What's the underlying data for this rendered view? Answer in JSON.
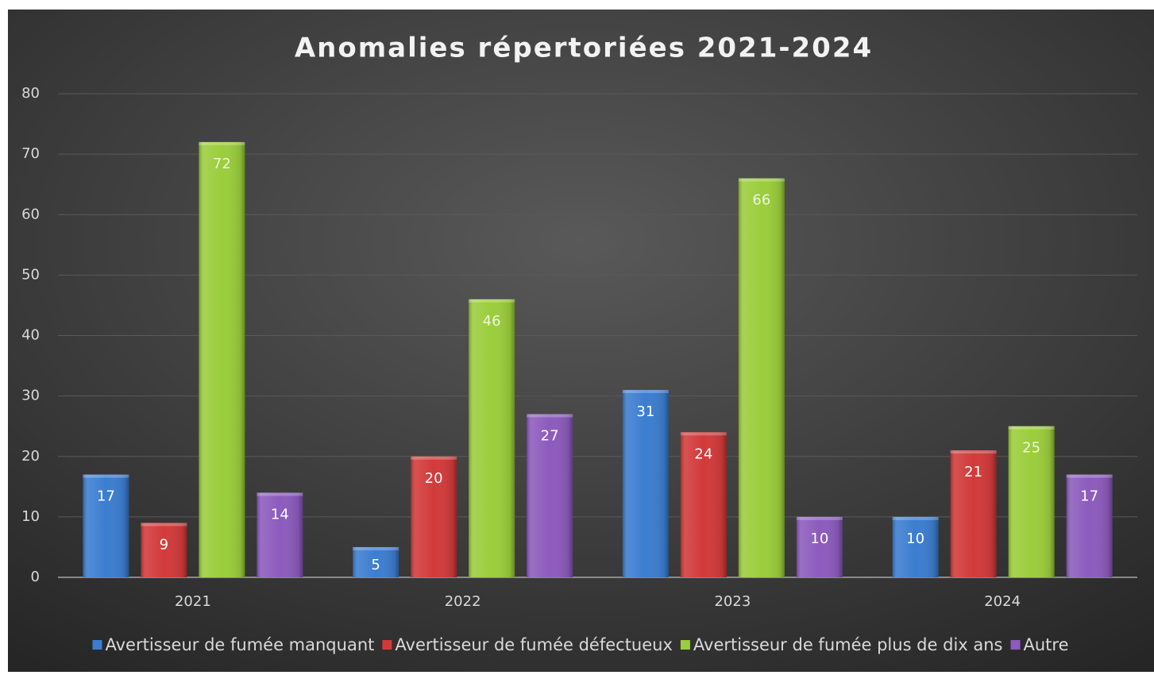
{
  "chart_data": {
    "type": "bar",
    "title": "Anomalies répertoriées 2021-2024",
    "categories": [
      "2021",
      "2022",
      "2023",
      "2024"
    ],
    "series": [
      {
        "name": "Avertisseur de fumée manquant",
        "color": "#3c7dd0",
        "values": [
          17,
          5,
          31,
          10
        ]
      },
      {
        "name": "Avertisseur de fumée défectueux",
        "color": "#d23a3a",
        "values": [
          9,
          20,
          24,
          21
        ]
      },
      {
        "name": "Avertisseur de fumée plus de dix ans",
        "color": "#9bcd3c",
        "values": [
          72,
          46,
          66,
          25
        ]
      },
      {
        "name": "Autre",
        "color": "#8c5bbd",
        "values": [
          14,
          27,
          10,
          17
        ]
      }
    ],
    "ylim": [
      0,
      80
    ],
    "yticks": [
      0,
      10,
      20,
      30,
      40,
      50,
      60,
      70,
      80
    ],
    "grid": true,
    "legend": "bottom"
  }
}
